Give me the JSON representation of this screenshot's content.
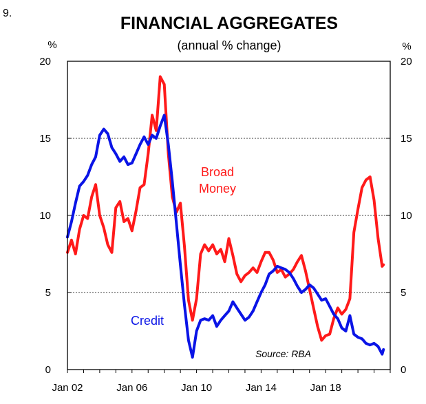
{
  "figure_number": "9.",
  "chart_data": {
    "type": "line",
    "title": "FINANCIAL AGGREGATES",
    "subtitle": "(annual % change)",
    "ylabel_left": "%",
    "ylabel_right": "%",
    "ylim": [
      0,
      20
    ],
    "yticks": [
      0,
      5,
      10,
      15,
      20
    ],
    "xlim": [
      2002.0,
      2022.0
    ],
    "xticks": [
      {
        "value": 2002.0,
        "label": "Jan 02"
      },
      {
        "value": 2006.0,
        "label": "Jan 06"
      },
      {
        "value": 2010.0,
        "label": "Jan 10"
      },
      {
        "value": 2014.0,
        "label": "Jan 14"
      },
      {
        "value": 2018.0,
        "label": "Jan 18"
      }
    ],
    "grid": "horizontal dotted",
    "source": "Source: RBA",
    "series": [
      {
        "name": "Credit",
        "label": "Credit",
        "color": "#0a14e6",
        "x": [
          2002.0,
          2002.25,
          2002.5,
          2002.75,
          2003.0,
          2003.25,
          2003.5,
          2003.75,
          2004.0,
          2004.25,
          2004.5,
          2004.75,
          2005.0,
          2005.25,
          2005.5,
          2005.75,
          2006.0,
          2006.25,
          2006.5,
          2006.75,
          2007.0,
          2007.25,
          2007.5,
          2007.75,
          2008.0,
          2008.25,
          2008.5,
          2008.75,
          2009.0,
          2009.25,
          2009.5,
          2009.75,
          2010.0,
          2010.25,
          2010.5,
          2010.75,
          2011.0,
          2011.25,
          2011.5,
          2011.75,
          2012.0,
          2012.25,
          2012.5,
          2012.75,
          2013.0,
          2013.25,
          2013.5,
          2013.75,
          2014.0,
          2014.25,
          2014.5,
          2014.75,
          2015.0,
          2015.25,
          2015.5,
          2015.75,
          2016.0,
          2016.25,
          2016.5,
          2016.75,
          2017.0,
          2017.25,
          2017.5,
          2017.75,
          2018.0,
          2018.25,
          2018.5,
          2018.75,
          2019.0,
          2019.25,
          2019.5,
          2019.75,
          2020.0,
          2020.25,
          2020.5,
          2020.75,
          2021.0,
          2021.25,
          2021.5,
          2021.58
        ],
        "values": [
          8.6,
          9.6,
          10.8,
          11.9,
          12.2,
          12.6,
          13.3,
          13.8,
          15.2,
          15.6,
          15.3,
          14.4,
          14.0,
          13.5,
          13.8,
          13.3,
          13.4,
          14.0,
          14.6,
          15.1,
          14.6,
          15.2,
          15.0,
          15.8,
          16.5,
          14.6,
          12.2,
          9.5,
          6.8,
          4.2,
          1.9,
          0.8,
          2.5,
          3.2,
          3.3,
          3.2,
          3.5,
          2.8,
          3.2,
          3.5,
          3.8,
          4.4,
          4.0,
          3.6,
          3.2,
          3.4,
          3.8,
          4.4,
          5.0,
          5.5,
          6.2,
          6.4,
          6.7,
          6.6,
          6.5,
          6.3,
          5.9,
          5.4,
          5.0,
          5.2,
          5.5,
          5.3,
          4.9,
          4.5,
          4.6,
          4.1,
          3.6,
          3.3,
          2.7,
          2.5,
          3.5,
          2.3,
          2.1,
          2.0,
          1.7,
          1.6,
          1.7,
          1.5,
          1.0,
          1.3
        ]
      },
      {
        "name": "Broad Money",
        "label": [
          "Broad",
          "Money"
        ],
        "color": "#ff1a1a",
        "x": [
          2002.0,
          2002.25,
          2002.5,
          2002.75,
          2003.0,
          2003.25,
          2003.5,
          2003.75,
          2004.0,
          2004.25,
          2004.5,
          2004.75,
          2005.0,
          2005.25,
          2005.5,
          2005.75,
          2006.0,
          2006.25,
          2006.5,
          2006.75,
          2007.0,
          2007.25,
          2007.5,
          2007.75,
          2008.0,
          2008.25,
          2008.5,
          2008.75,
          2009.0,
          2009.25,
          2009.5,
          2009.75,
          2010.0,
          2010.25,
          2010.5,
          2010.75,
          2011.0,
          2011.25,
          2011.5,
          2011.75,
          2012.0,
          2012.25,
          2012.5,
          2012.75,
          2013.0,
          2013.25,
          2013.5,
          2013.75,
          2014.0,
          2014.25,
          2014.5,
          2014.75,
          2015.0,
          2015.25,
          2015.5,
          2015.75,
          2016.0,
          2016.25,
          2016.5,
          2016.75,
          2017.0,
          2017.25,
          2017.5,
          2017.75,
          2018.0,
          2018.25,
          2018.5,
          2018.75,
          2019.0,
          2019.25,
          2019.5,
          2019.75,
          2020.0,
          2020.25,
          2020.5,
          2020.75,
          2021.0,
          2021.25,
          2021.5,
          2021.58
        ],
        "values": [
          7.6,
          8.4,
          7.5,
          9.1,
          10.0,
          9.8,
          11.2,
          12.0,
          10.0,
          9.2,
          8.1,
          7.6,
          10.5,
          10.9,
          9.6,
          9.8,
          9.0,
          10.3,
          11.8,
          12.0,
          14.0,
          16.5,
          15.5,
          19.0,
          18.5,
          14.0,
          11.2,
          10.2,
          10.8,
          8.0,
          4.5,
          3.2,
          4.6,
          7.5,
          8.1,
          7.7,
          8.1,
          7.5,
          7.8,
          7.0,
          8.5,
          7.4,
          6.2,
          5.7,
          6.1,
          6.3,
          6.6,
          6.3,
          7.0,
          7.6,
          7.6,
          7.1,
          6.3,
          6.5,
          6.0,
          6.2,
          6.5,
          7.0,
          7.4,
          6.4,
          5.2,
          4.0,
          2.8,
          1.9,
          2.2,
          2.3,
          3.3,
          4.0,
          3.6,
          3.9,
          4.6,
          8.9,
          10.4,
          11.8,
          12.3,
          12.5,
          11.0,
          8.5,
          6.7,
          6.8
        ]
      }
    ]
  }
}
